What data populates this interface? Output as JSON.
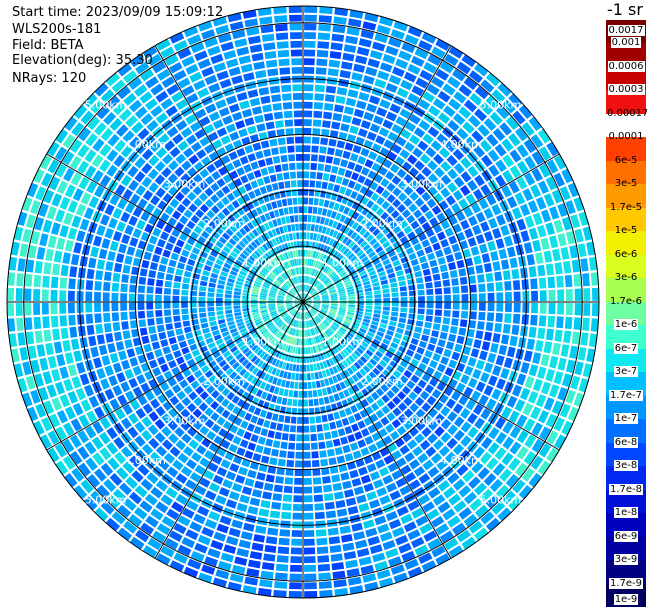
{
  "header": {
    "start_time": "Start time: 2023/09/09 15:09:12",
    "instrument": "WLS200s-181",
    "field": "Field: BETA",
    "elevation": "Elevation(deg): 35.30",
    "nrays": "NRays: 120"
  },
  "colorbar": {
    "units": "-1 sr",
    "labels": [
      "0.0017",
      "0.001",
      "0.0006",
      "0.0003",
      "0.00017",
      "0.0001",
      "6e-5",
      "3e-5",
      "1.7e-5",
      "1e-5",
      "6e-6",
      "3e-6",
      "1.7e-6",
      "1e-6",
      "6e-7",
      "3e-7",
      "1.7e-7",
      "1e-7",
      "6e-8",
      "3e-8",
      "1.7e-8",
      "1e-8",
      "6e-9",
      "3e-9",
      "1.7e-9",
      "1e-9"
    ],
    "colors": [
      "#7a0000",
      "#a00000",
      "#c80000",
      "#f01010",
      "#ffffff",
      "#ff4000",
      "#ff7000",
      "#ff9a00",
      "#ffc800",
      "#f0f000",
      "#d8ff20",
      "#a8ff50",
      "#70ffa0",
      "#40ffd0",
      "#10e8f0",
      "#00c0ff",
      "#0098ff",
      "#0070ff",
      "#0048ff",
      "#0028f0",
      "#0010d8",
      "#0000c0",
      "#0000a0",
      "#000080",
      "#000060"
    ]
  },
  "chart_data": {
    "type": "heatmap",
    "projection": "polar",
    "nrays": 120,
    "range_rings_km": [
      1,
      2,
      3,
      4,
      5
    ],
    "ring_labels": [
      "1.00km",
      "2.00km",
      "3.00km",
      "4.00km",
      "5.00km"
    ],
    "max_range_km": 5.3,
    "spokes_deg": [
      0,
      30,
      60,
      90,
      120,
      150,
      180,
      210,
      240,
      270,
      300,
      330
    ],
    "color_scale": "log",
    "value_range": [
      1e-09,
      0.0017
    ]
  }
}
